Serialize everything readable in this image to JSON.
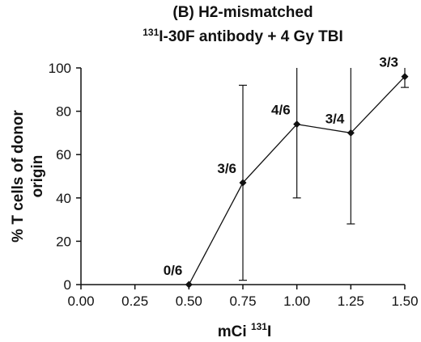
{
  "chart_data": {
    "type": "line",
    "title_line1": "(B) H2-mismatched",
    "title_line2_sup": "131",
    "title_line2": "I-30F antibody + 4 Gy TBI",
    "xlabel": "mCi",
    "xlabel_sup": "131",
    "xlabel_suffix": "I",
    "ylabel_line1": "% T cells of donor",
    "ylabel_line2": "origin",
    "xlim": [
      0.0,
      1.5
    ],
    "ylim": [
      0,
      100
    ],
    "x_ticks": [
      "0.00",
      "0.25",
      "0.50",
      "0.75",
      "1.00",
      "1.25",
      "1.50"
    ],
    "y_ticks": [
      "0",
      "20",
      "40",
      "60",
      "80",
      "100"
    ],
    "grid": false,
    "points": [
      {
        "x": 0.5,
        "y": 0,
        "err_low": 0,
        "err_high": 0,
        "label": "0/6"
      },
      {
        "x": 0.75,
        "y": 47,
        "err_low": 2,
        "err_high": 92,
        "label": "3/6"
      },
      {
        "x": 1.0,
        "y": 74,
        "err_low": 40,
        "err_high": 100,
        "label": "4/6"
      },
      {
        "x": 1.25,
        "y": 70,
        "err_low": 28,
        "err_high": 100,
        "label": "3/4"
      },
      {
        "x": 1.5,
        "y": 96,
        "err_low": 91,
        "err_high": 100,
        "label": "3/3"
      }
    ],
    "color": "#111111"
  }
}
